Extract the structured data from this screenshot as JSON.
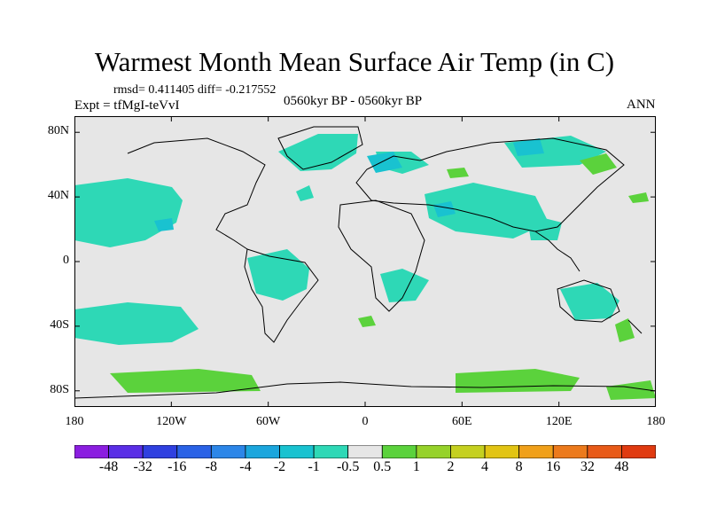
{
  "title": "Warmest Month Mean Surface Air Temp (in C)",
  "stats": "rmsd= 0.411405 diff= -0.217552",
  "experiment": "Expt = tfMgI-teVvI",
  "period": "0560kyr BP - 0560kyr BP",
  "season": "ANN",
  "lat_ticks": [
    {
      "label": "80N",
      "value": 80
    },
    {
      "label": "40N",
      "value": 40
    },
    {
      "label": "0",
      "value": 0
    },
    {
      "label": "40S",
      "value": -40
    },
    {
      "label": "80S",
      "value": -80
    }
  ],
  "lon_ticks": [
    {
      "label": "180",
      "value": -180
    },
    {
      "label": "120W",
      "value": -120
    },
    {
      "label": "60W",
      "value": -60
    },
    {
      "label": "0",
      "value": 0
    },
    {
      "label": "60E",
      "value": 60
    },
    {
      "label": "120E",
      "value": 120
    },
    {
      "label": "180",
      "value": 180
    }
  ],
  "colorbar": {
    "colors": [
      "#8b1ee0",
      "#5a2ee6",
      "#2f40e0",
      "#2a62e6",
      "#2c86e8",
      "#1ba6dd",
      "#19c2d0",
      "#2ed8b6",
      "#e6e6e6",
      "#5bd23c",
      "#96d22a",
      "#c5d020",
      "#e2c414",
      "#f0a01a",
      "#ec7a1c",
      "#e85a18",
      "#e03a10"
    ],
    "labels": [
      "-48",
      "-32",
      "-16",
      "-8",
      "-4",
      "-2",
      "-1",
      "-0.5",
      "0.5",
      "1",
      "2",
      "4",
      "8",
      "16",
      "32",
      "48"
    ]
  },
  "legend_colors": {
    "background_zero": "#e6e6e6",
    "cool_small": "#2ed8b6",
    "cool": "#19c2d0",
    "warm_small": "#5bd23c"
  }
}
